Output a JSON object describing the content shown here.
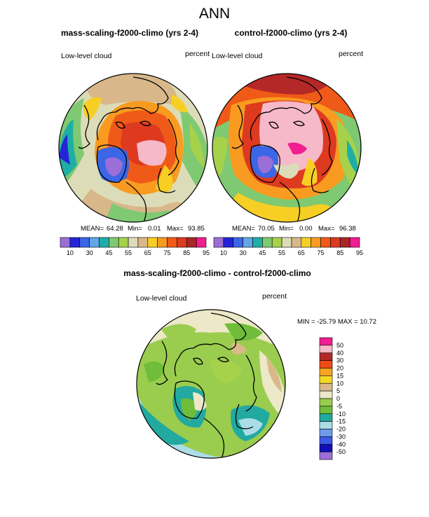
{
  "title": "ANN",
  "panels": [
    {
      "title": "mass-scaling-f2000-climo (yrs 2-4)",
      "left_label": "Low-level cloud",
      "right_label": "percent",
      "stats": {
        "mean_label": "MEAN=",
        "mean": "64.28",
        "min_label": "Min=",
        "min": "0.01",
        "max_label": "Max=",
        "max": "93.85"
      }
    },
    {
      "title": "control-f2000-climo (yrs 2-4)",
      "left_label": "Low-level cloud",
      "right_label": "percent",
      "stats": {
        "mean_label": "MEAN=",
        "mean": "70.05",
        "min_label": "Min=",
        "min": "0.00",
        "max_label": "Max=",
        "max": "96.38"
      }
    },
    {
      "title": "mass-scaling-f2000-climo - control-f2000-climo",
      "left_label": "Low-level cloud",
      "right_label": "percent",
      "stats_text": "MIN = -25.79 MAX =  10.72"
    }
  ],
  "abs_colorbar": {
    "colors": [
      "#9b6fd6",
      "#2424d6",
      "#3b66e6",
      "#62a6e8",
      "#1faea5",
      "#7fc972",
      "#a5d24a",
      "#dcdcb8",
      "#d8b78a",
      "#f7cf24",
      "#f99b20",
      "#f05a18",
      "#dd3a20",
      "#a82626",
      "#f01e8e"
    ],
    "tick_labels": [
      "10",
      "30",
      "45",
      "55",
      "65",
      "75",
      "85",
      "95"
    ]
  },
  "diff_colorbar": {
    "colors": [
      "#f01e8e",
      "#f6b9c9",
      "#b52828",
      "#f04a18",
      "#f7a422",
      "#f5d824",
      "#d9b98a",
      "#ece8c8",
      "#9acc4e",
      "#6fbd3a",
      "#22aaa0",
      "#abdde6",
      "#6e9cea",
      "#3b5ae6",
      "#1010b8",
      "#9b6fd6"
    ],
    "tick_labels": [
      "50",
      "40",
      "30",
      "20",
      "15",
      "10",
      "5",
      "0",
      "-5",
      "-10",
      "-15",
      "-20",
      "-30",
      "-40",
      "-50"
    ]
  }
}
